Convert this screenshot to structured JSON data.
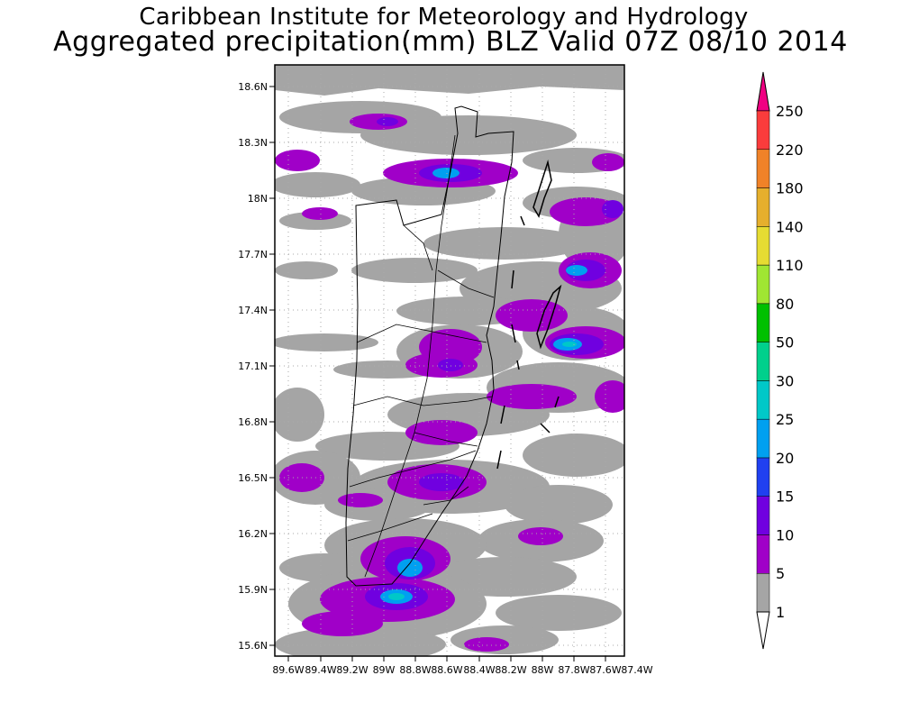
{
  "header": {
    "institution": "Caribbean Institute for Meteorology and Hydrology",
    "product": "Aggregated precipitation(mm) BLZ Valid 07Z 08/10 2014"
  },
  "map": {
    "lat_labels": [
      "18.6N",
      "18.3N",
      "18N",
      "17.7N",
      "17.4N",
      "17.1N",
      "16.8N",
      "16.5N",
      "16.2N",
      "15.9N",
      "15.6N"
    ],
    "lon_labels": [
      "89.6W",
      "89.4W",
      "89.2W",
      "89W",
      "88.8W",
      "88.6W",
      "88.4W",
      "88.2W",
      "88W",
      "87.8W",
      "87.6W",
      "87.4W"
    ]
  },
  "colorbar": {
    "levels": [
      "1",
      "5",
      "10",
      "15",
      "20",
      "25",
      "30",
      "50",
      "80",
      "110",
      "140",
      "180",
      "220",
      "250"
    ],
    "colors": [
      "#ffffff",
      "#a5a5a5",
      "#a000c8",
      "#7000e0",
      "#2040f0",
      "#00a0f0",
      "#00c8c8",
      "#00d08c",
      "#00c000",
      "#a0e632",
      "#e6dc32",
      "#e6af2d",
      "#f08228",
      "#fa3c3c",
      "#f00082"
    ]
  },
  "rain_colors": {
    "light": "#a5a5a5",
    "moderate": "#a000c8",
    "heavy": "#7000e0",
    "intense": "#2040f0",
    "very_intense": "#00a0f0",
    "extreme": "#00c8c8"
  }
}
